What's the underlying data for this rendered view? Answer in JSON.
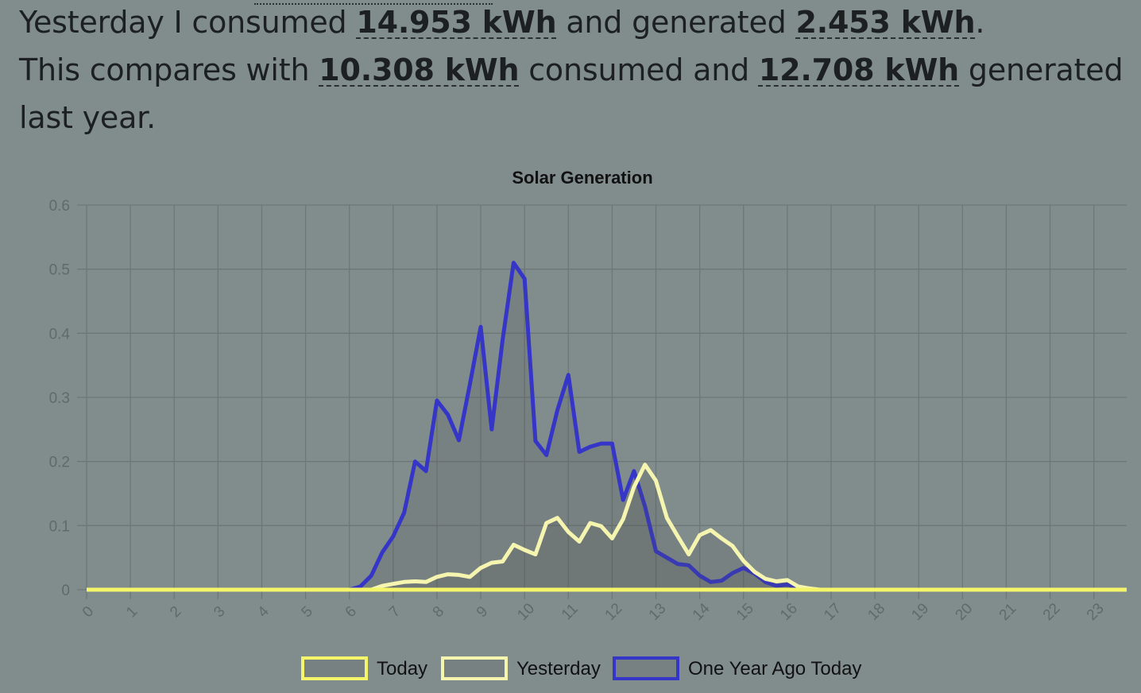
{
  "summary": {
    "line1_a": "Yesterday I consumed ",
    "line1_v1": "14.953 kWh",
    "line1_b": " and generated ",
    "line1_v2": "2.453 kWh",
    "line1_c": ".",
    "line2_a": "This compares with ",
    "line2_v1": "10.308 kWh",
    "line2_b": " consumed and ",
    "line2_v2": "12.708 kWh",
    "line2_c": " generated last year."
  },
  "chart_data": {
    "type": "area",
    "title": "Solar Generation",
    "xlabel": "",
    "ylabel": "",
    "ylim": [
      0,
      0.6
    ],
    "y_ticks": [
      0,
      0.1,
      0.2,
      0.3,
      0.4,
      0.5,
      0.6
    ],
    "x_tick_labels": [
      "0",
      "1",
      "2",
      "3",
      "4",
      "5",
      "6",
      "7",
      "8",
      "9",
      "10",
      "11",
      "12",
      "13",
      "14",
      "15",
      "16",
      "17",
      "18",
      "19",
      "20",
      "21",
      "22",
      "23"
    ],
    "grid": true,
    "legend_position": "bottom",
    "series": [
      {
        "name": "Today",
        "color": "#f5f56a",
        "x": [
          0,
          23.75
        ],
        "y": [
          0,
          0
        ]
      },
      {
        "name": "Yesterday",
        "color": "#f5f5b0",
        "x": [
          0,
          0.5,
          1,
          1.5,
          2,
          2.5,
          3,
          3.5,
          4,
          4.5,
          5,
          5.5,
          6,
          6.25,
          6.5,
          6.75,
          7,
          7.25,
          7.5,
          7.75,
          8,
          8.25,
          8.5,
          8.75,
          9,
          9.25,
          9.5,
          9.75,
          10,
          10.25,
          10.5,
          10.75,
          11,
          11.25,
          11.5,
          11.75,
          12,
          12.25,
          12.5,
          12.75,
          13,
          13.25,
          13.5,
          13.75,
          14,
          14.25,
          14.5,
          14.75,
          15,
          15.25,
          15.5,
          15.75,
          16,
          16.25,
          16.5,
          16.75,
          17,
          17.5,
          18,
          18.5,
          19,
          19.5,
          20,
          20.5,
          21,
          21.5,
          22,
          22.5,
          23,
          23.5,
          23.75
        ],
        "y": [
          0,
          0,
          0,
          0,
          0,
          0,
          0,
          0,
          0,
          0,
          0,
          0,
          0,
          0,
          0,
          0.006,
          0.009,
          0.012,
          0.013,
          0.012,
          0.02,
          0.024,
          0.023,
          0.02,
          0.034,
          0.042,
          0.044,
          0.07,
          0.062,
          0.055,
          0.104,
          0.112,
          0.09,
          0.075,
          0.104,
          0.099,
          0.08,
          0.11,
          0.16,
          0.195,
          0.17,
          0.112,
          0.083,
          0.055,
          0.085,
          0.093,
          0.08,
          0.068,
          0.045,
          0.028,
          0.017,
          0.013,
          0.015,
          0.005,
          0.002,
          0,
          0,
          0,
          0,
          0,
          0,
          0,
          0,
          0,
          0,
          0,
          0,
          0,
          0,
          0,
          0
        ]
      },
      {
        "name": "One Year Ago Today",
        "color": "#3535c8",
        "x": [
          0,
          0.5,
          1,
          1.5,
          2,
          2.5,
          3,
          3.5,
          4,
          4.5,
          5,
          5.5,
          6,
          6.25,
          6.5,
          6.75,
          7,
          7.25,
          7.5,
          7.75,
          8,
          8.25,
          8.5,
          8.75,
          9,
          9.25,
          9.5,
          9.75,
          10,
          10.25,
          10.5,
          10.75,
          11,
          11.25,
          11.5,
          11.75,
          12,
          12.25,
          12.5,
          12.75,
          13,
          13.25,
          13.5,
          13.75,
          14,
          14.25,
          14.5,
          14.75,
          15,
          15.25,
          15.5,
          15.75,
          16,
          16.25,
          16.5,
          16.75,
          17,
          17.5,
          18,
          18.5,
          19,
          19.5,
          20,
          20.5,
          21,
          21.5,
          22,
          22.5,
          23,
          23.5,
          23.75
        ],
        "y": [
          0,
          0,
          0,
          0,
          0,
          0,
          0,
          0,
          0,
          0,
          0,
          0,
          0,
          0.005,
          0.022,
          0.058,
          0.083,
          0.12,
          0.2,
          0.185,
          0.295,
          0.273,
          0.233,
          0.32,
          0.41,
          0.25,
          0.39,
          0.51,
          0.485,
          0.232,
          0.21,
          0.28,
          0.335,
          0.215,
          0.223,
          0.228,
          0.228,
          0.14,
          0.185,
          0.13,
          0.06,
          0.05,
          0.04,
          0.038,
          0.022,
          0.012,
          0.014,
          0.026,
          0.034,
          0.025,
          0.012,
          0.006,
          0.008,
          0.003,
          0,
          0,
          0,
          0,
          0,
          0,
          0,
          0,
          0,
          0,
          0,
          0,
          0,
          0,
          0,
          0,
          0
        ]
      }
    ]
  }
}
